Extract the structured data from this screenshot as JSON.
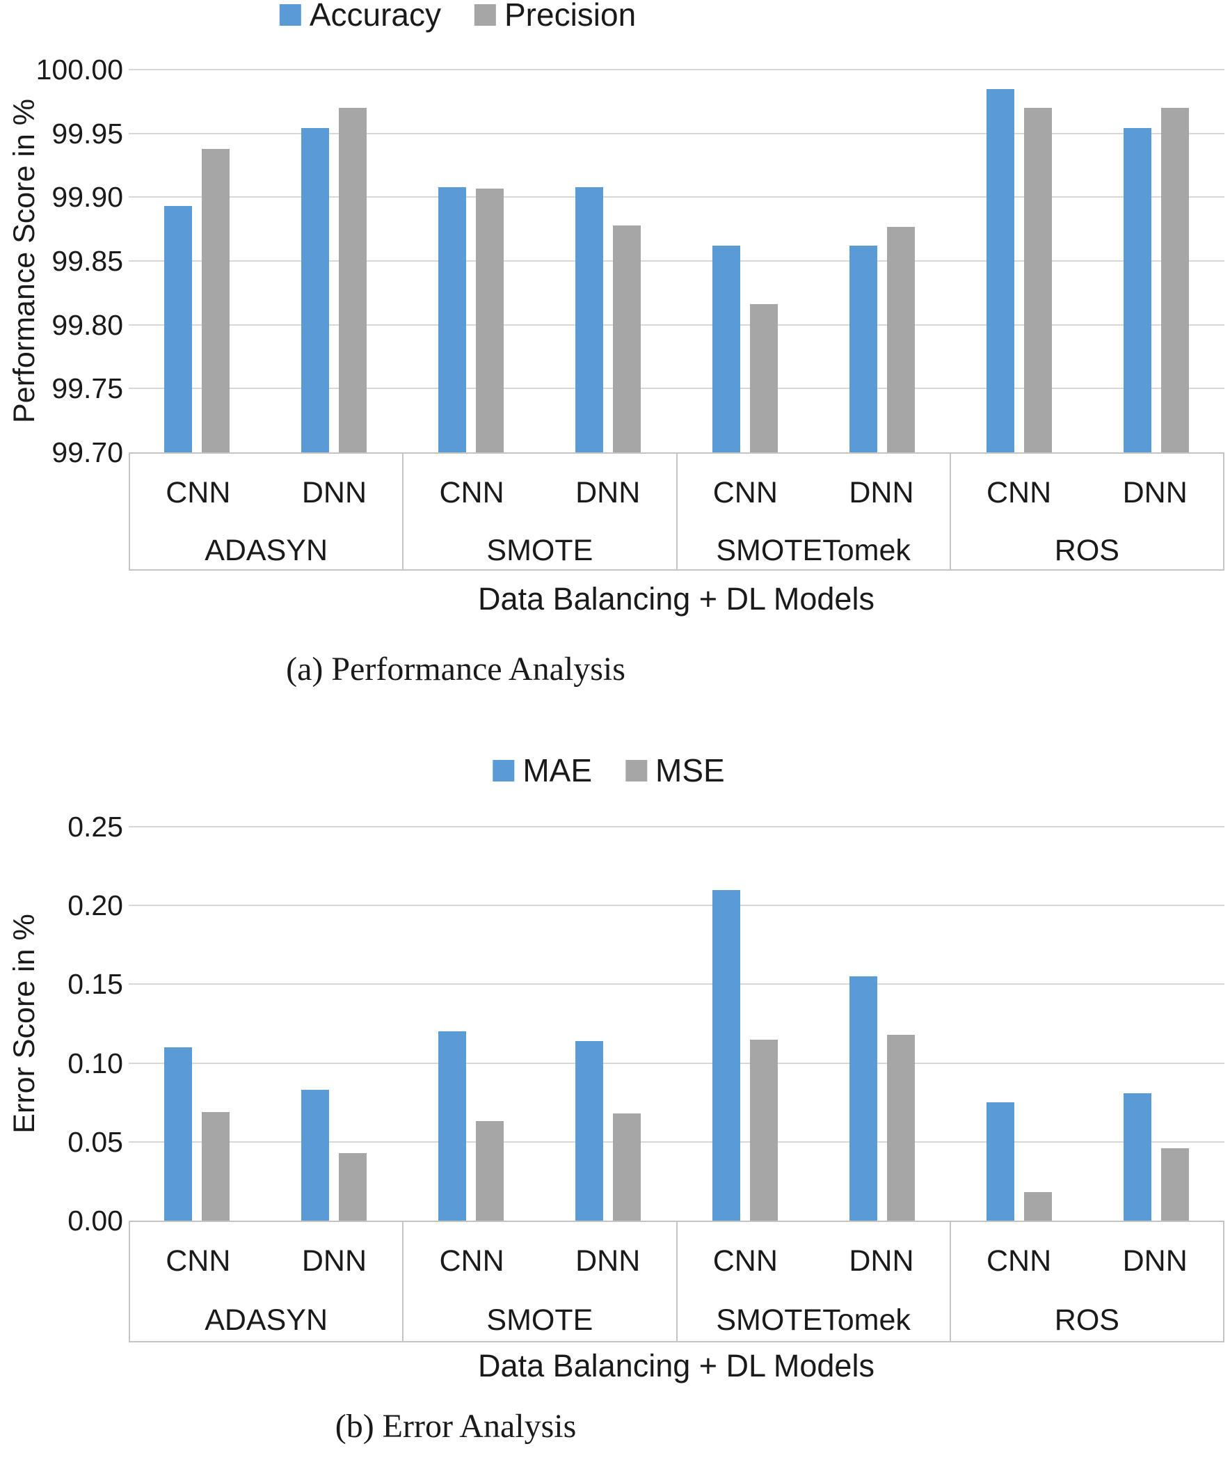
{
  "colors": {
    "accent_blue": "#5B9BD5",
    "accent_gray": "#A6A6A6",
    "gridline": "#D8D8D8",
    "axis_line": "#C4C4C4",
    "text": "#1A1A1A"
  },
  "chart_data": [
    {
      "id": "performance",
      "type": "bar",
      "title": "(a) Performance Analysis",
      "caption": "(a) Performance Analysis",
      "xlabel": "Data Balancing + DL Models",
      "ylabel": "Performance Score in %",
      "ylim": [
        99.7,
        100.0
      ],
      "ystep": 0.05,
      "yticks": [
        "100.00",
        "99.95",
        "99.90",
        "99.85",
        "99.80",
        "99.75",
        "99.70"
      ],
      "grid": true,
      "legend_position": "top",
      "legend": [
        {
          "label": "Accuracy",
          "color": "#5B9BD5"
        },
        {
          "label": "Precision",
          "color": "#A6A6A6"
        }
      ],
      "groups": [
        "ADASYN",
        "SMOTE",
        "SMOTETomek",
        "ROS"
      ],
      "models": [
        "CNN",
        "DNN"
      ],
      "categories": [
        "ADASYN CNN",
        "ADASYN DNN",
        "SMOTE CNN",
        "SMOTE DNN",
        "SMOTETomek CNN",
        "SMOTETomek DNN",
        "ROS CNN",
        "ROS DNN"
      ],
      "series": [
        {
          "name": "Accuracy",
          "color": "#5B9BD5",
          "values": [
            99.893,
            99.954,
            99.908,
            99.908,
            99.862,
            99.862,
            99.985,
            99.954
          ]
        },
        {
          "name": "Precision",
          "color": "#A6A6A6",
          "values": [
            99.938,
            99.97,
            99.907,
            99.878,
            99.816,
            99.877,
            99.97,
            99.97
          ]
        }
      ]
    },
    {
      "id": "error",
      "type": "bar",
      "title": "(b) Error Analysis",
      "caption": "(b) Error Analysis",
      "xlabel": "Data Balancing + DL Models",
      "ylabel": "Error Score in %",
      "ylim": [
        0.0,
        0.25
      ],
      "ystep": 0.05,
      "yticks": [
        "0.25",
        "0.20",
        "0.15",
        "0.10",
        "0.05",
        "0.00"
      ],
      "grid": true,
      "legend_position": "top",
      "legend": [
        {
          "label": "MAE",
          "color": "#5B9BD5"
        },
        {
          "label": "MSE",
          "color": "#A6A6A6"
        }
      ],
      "groups": [
        "ADASYN",
        "SMOTE",
        "SMOTETomek",
        "ROS"
      ],
      "models": [
        "CNN",
        "DNN"
      ],
      "categories": [
        "ADASYN CNN",
        "ADASYN DNN",
        "SMOTE CNN",
        "SMOTE DNN",
        "SMOTETomek CNN",
        "SMOTETomek DNN",
        "ROS CNN",
        "ROS DNN"
      ],
      "series": [
        {
          "name": "MAE",
          "color": "#5B9BD5",
          "values": [
            0.11,
            0.083,
            0.12,
            0.114,
            0.21,
            0.155,
            0.075,
            0.081
          ]
        },
        {
          "name": "MSE",
          "color": "#A6A6A6",
          "values": [
            0.069,
            0.043,
            0.063,
            0.068,
            0.115,
            0.118,
            0.018,
            0.046
          ]
        }
      ]
    }
  ]
}
